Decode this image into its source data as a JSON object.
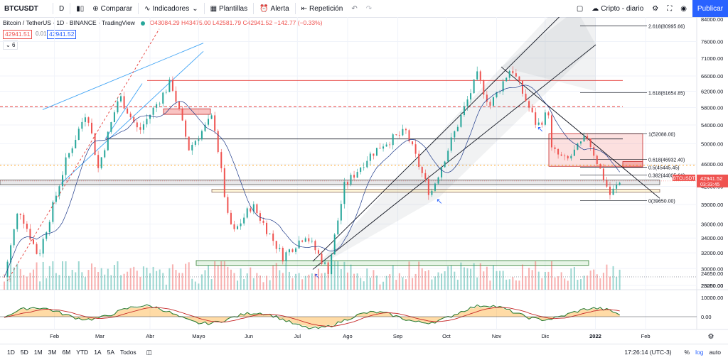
{
  "toolbar": {
    "symbol": "BTCUSDT",
    "interval": "D",
    "compare": "Comparar",
    "indicators": "Indicadores",
    "templates": "Plantillas",
    "alert": "Alerta",
    "replay": "Repetición",
    "watchlist": "Cripto - diario",
    "publish": "Publicar"
  },
  "legend": {
    "title": "Bitcoin / TetherUS · 1D · BINANCE · TradingView",
    "ohlc": "O43084.29 H43475.00 L42581.79 C42941.52 −142.77 (−0.33%)",
    "bid": "42941.51",
    "spread": "0.01",
    "ask": "42941.52",
    "indicator_count": "6"
  },
  "chart_data": {
    "type": "line",
    "title": "Bitcoin / TetherUS · 1D · BINANCE · TradingView",
    "xlabel": "",
    "ylabel": "",
    "x_ticks": [
      "Feb",
      "Mar",
      "Abr",
      "Mayo",
      "Jun",
      "Jul",
      "Ago",
      "Sep",
      "Oct",
      "Nov",
      "Dic",
      "2022",
      "Feb"
    ],
    "y_ticks": [
      28000,
      30000,
      32000,
      34000,
      36000,
      39000,
      42000,
      46000,
      50000,
      54000,
      58000,
      62000,
      66000,
      71000,
      76000
    ],
    "y_log": true,
    "ylim": [
      27200,
      84000
    ],
    "price_axis_top_label": "84000.00",
    "current_price": {
      "label": "BTCUSDT",
      "value": "42941.52",
      "countdown": "03:33:45"
    },
    "series": [
      {
        "name": "",
        "values": [
          [
            "2021-01-01",
            29000
          ],
          [
            "2021-01-10",
            38500
          ],
          [
            "2021-01-22",
            31500
          ],
          [
            "2021-02-08",
            46500
          ],
          [
            "2021-02-21",
            57500
          ],
          [
            "2021-02-28",
            45200
          ],
          [
            "2021-03-13",
            61000
          ],
          [
            "2021-03-25",
            52500
          ],
          [
            "2021-04-14",
            64500
          ],
          [
            "2021-04-25",
            49000
          ],
          [
            "2021-05-10",
            56000
          ],
          [
            "2021-05-19",
            37000
          ],
          [
            "2021-05-23",
            34800
          ],
          [
            "2021-06-03",
            39000
          ],
          [
            "2021-06-22",
            31500
          ],
          [
            "2021-07-06",
            34500
          ],
          [
            "2021-07-20",
            29800
          ],
          [
            "2021-07-30",
            42000
          ],
          [
            "2021-08-14",
            47500
          ],
          [
            "2021-08-23",
            50000
          ],
          [
            "2021-09-06",
            52500
          ],
          [
            "2021-09-21",
            40600
          ],
          [
            "2021-10-05",
            51500
          ],
          [
            "2021-10-20",
            66000
          ],
          [
            "2021-10-28",
            58500
          ],
          [
            "2021-11-10",
            68500
          ],
          [
            "2021-11-26",
            53700
          ],
          [
            "2021-12-03",
            57000
          ],
          [
            "2021-12-04",
            49000
          ],
          [
            "2021-12-14",
            46500
          ],
          [
            "2021-12-27",
            51500
          ],
          [
            "2022-01-10",
            40600
          ],
          [
            "2022-01-17",
            42941
          ]
        ]
      }
    ],
    "fibonacci": [
      {
        "level": "2.618",
        "value": 80995.66
      },
      {
        "level": "1.618",
        "value": 61654.85
      },
      {
        "level": "1",
        "value": 52088.0
      },
      {
        "level": "0.618",
        "value": 46932.4
      },
      {
        "level": "0.5",
        "value": 45445.45
      },
      {
        "level": "0.382",
        "value": 44005.61
      },
      {
        "level": "0",
        "value": 39650.0
      }
    ],
    "oscillator": {
      "y_ticks": [
        "10000.00",
        "0.00"
      ]
    },
    "volume": {
      "y_ticks": [
        "24650.00",
        "23250.00"
      ]
    }
  },
  "bottombar": {
    "ranges": [
      "1D",
      "5D",
      "1M",
      "3M",
      "6M",
      "YTD",
      "1A",
      "5A",
      "Todos"
    ],
    "time": "17:26:14 (UTC-3)",
    "percent": "%",
    "log": "log",
    "auto": "auto"
  },
  "colors": {
    "up": "#26a69a",
    "down": "#ef5350",
    "accent": "#2962ff"
  }
}
